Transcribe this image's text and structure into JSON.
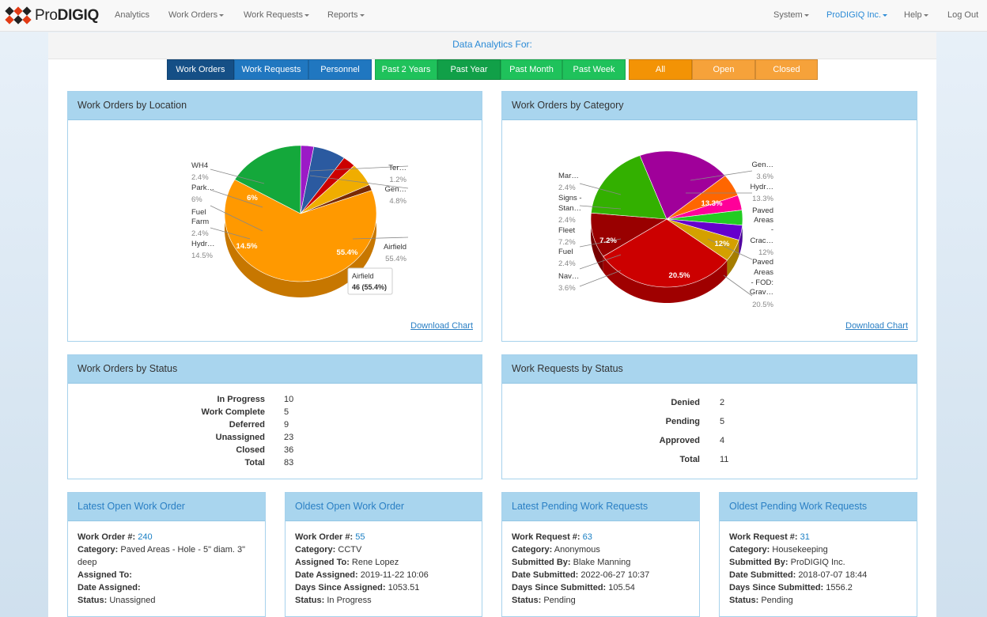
{
  "brand": {
    "name_prefix": "Pro",
    "name_suffix": "DIGIQ"
  },
  "nav": {
    "analytics": "Analytics",
    "work_orders": "Work Orders",
    "work_requests": "Work Requests",
    "reports": "Reports",
    "system": "System",
    "company": "ProDIGIQ Inc.",
    "help": "Help",
    "logout": "Log Out"
  },
  "page": {
    "heading": "Data Analytics For:"
  },
  "filters": {
    "type": [
      "Work Orders",
      "Work Requests",
      "Personnel"
    ],
    "type_selected": "Work Orders",
    "period": [
      "Past 2 Years",
      "Past Year",
      "Past Month",
      "Past Week"
    ],
    "period_selected": "Past Year",
    "state": [
      "All",
      "Open",
      "Closed"
    ],
    "state_selected": "All"
  },
  "charts": {
    "download_label": "Download Chart",
    "location": {
      "title": "Work Orders by Location",
      "tooltip": {
        "name": "Airfield",
        "value": "46 (55.4%)"
      }
    },
    "category": {
      "title": "Work Orders by Category"
    }
  },
  "chart_data": [
    {
      "type": "pie",
      "title": "Work Orders by Location",
      "slices": [
        {
          "label": "Airfield",
          "percent": 55.4,
          "value": 46,
          "color": "#ff9900"
        },
        {
          "label": "Hydr…",
          "percent": 14.5,
          "color": "#14a83b"
        },
        {
          "label": "Fuel Farm",
          "percent": 2.4,
          "color": "#9b1ac6"
        },
        {
          "label": "Park…",
          "percent": 6,
          "color": "#2b5aa0"
        },
        {
          "label": "WH4",
          "percent": 2.4,
          "color": "#cc0000"
        },
        {
          "label": "Gen…",
          "percent": 4.8,
          "color": "#f0ad00"
        },
        {
          "label": "Ter…",
          "percent": 1.2,
          "color": "#7a2a00"
        }
      ],
      "callouts": [
        {
          "label": "WH4",
          "pct": "2.4%"
        },
        {
          "label": "Park…",
          "pct": "6%"
        },
        {
          "label": "Fuel Farm",
          "pct": "2.4%"
        },
        {
          "label": "Hydr…",
          "pct": "14.5%"
        },
        {
          "label": "Ter…",
          "pct": "1.2%"
        },
        {
          "label": "Gen…",
          "pct": "4.8%"
        },
        {
          "label": "Airfield",
          "pct": "55.4%"
        }
      ],
      "inner_labels": [
        "55.4%",
        "14.5%",
        "6%"
      ]
    },
    {
      "type": "pie",
      "title": "Work Orders by Category",
      "slices": [
        {
          "label": "Paved Areas - FOD: Grav…",
          "percent": 20.5,
          "color": "#cc0000"
        },
        {
          "label": "Fleet",
          "percent": 7.2,
          "color": "#990000"
        },
        {
          "label": "Paved Areas - Crac…",
          "percent": 12,
          "color": "#33b000"
        },
        {
          "label": "Hydr…",
          "percent": 13.3,
          "color": "#a0009a"
        },
        {
          "label": "Gen…",
          "percent": 3.6,
          "color": "#ff6600"
        },
        {
          "label": "Mar…",
          "percent": 2.4,
          "color": "#ff0099"
        },
        {
          "label": "Signs - Stan…",
          "percent": 2.4,
          "color": "#22cc22"
        },
        {
          "label": "Fuel",
          "percent": 2.4,
          "color": "#6600cc"
        },
        {
          "label": "Nav…",
          "percent": 3.6,
          "color": "#d4a000"
        }
      ],
      "callouts": [
        {
          "label": "Mar…",
          "pct": "2.4%"
        },
        {
          "label": "Signs - Stan…",
          "pct": "2.4%"
        },
        {
          "label": "Fleet",
          "pct": "7.2%"
        },
        {
          "label": "Fuel",
          "pct": "2.4%"
        },
        {
          "label": "Nav…",
          "pct": "3.6%"
        },
        {
          "label": "Gen…",
          "pct": "3.6%"
        },
        {
          "label": "Hydr…",
          "pct": "13.3%"
        },
        {
          "label": "Paved Areas - Crac…",
          "pct": "12%"
        },
        {
          "label": "Paved Areas - FOD: Grav…",
          "pct": "20.5%"
        }
      ],
      "inner_labels": [
        "13.3%",
        "12%",
        "20.5%",
        "7.2%"
      ]
    }
  ],
  "wo_status": {
    "title": "Work Orders by Status",
    "rows": [
      {
        "label": "In Progress",
        "value": "10"
      },
      {
        "label": "Work Complete",
        "value": "5"
      },
      {
        "label": "Deferred",
        "value": "9"
      },
      {
        "label": "Unassigned",
        "value": "23"
      },
      {
        "label": "Closed",
        "value": "36"
      },
      {
        "label": "Total",
        "value": "83"
      }
    ]
  },
  "wr_status": {
    "title": "Work Requests by Status",
    "rows": [
      {
        "label": "Denied",
        "value": "2"
      },
      {
        "label": "Pending",
        "value": "5"
      },
      {
        "label": "Approved",
        "value": "4"
      },
      {
        "label": "Total",
        "value": "11"
      }
    ]
  },
  "latest_open_wo": {
    "title": "Latest Open Work Order",
    "number_label": "Work Order #:",
    "number": "240",
    "category_label": "Category:",
    "category": "Paved Areas - Hole - 5\" diam. 3\" deep",
    "assigned_to_label": "Assigned To:",
    "assigned_to": "",
    "date_assigned_label": "Date Assigned:",
    "date_assigned": "",
    "status_label": "Status:",
    "status": "Unassigned"
  },
  "oldest_open_wo": {
    "title": "Oldest Open Work Order",
    "number_label": "Work Order #:",
    "number": "55",
    "category_label": "Category:",
    "category": "CCTV",
    "assigned_to_label": "Assigned To:",
    "assigned_to": "Rene Lopez",
    "date_assigned_label": "Date Assigned:",
    "date_assigned": "2019-11-22 10:06",
    "days_label": "Days Since Assigned:",
    "days": "1053.51",
    "status_label": "Status:",
    "status": "In Progress"
  },
  "latest_pending_wr": {
    "title": "Latest Pending Work Requests",
    "number_label": "Work Request #:",
    "number": "63",
    "category_label": "Category:",
    "category": "Anonymous",
    "submitted_by_label": "Submitted By:",
    "submitted_by": "Blake Manning",
    "date_label": "Date Submitted:",
    "date": "2022-06-27 10:37",
    "days_label": "Days Since Submitted:",
    "days": "105.54",
    "status_label": "Status:",
    "status": "Pending"
  },
  "oldest_pending_wr": {
    "title": "Oldest Pending Work Requests",
    "number_label": "Work Request #:",
    "number": "31",
    "category_label": "Category:",
    "category": "Housekeeping",
    "submitted_by_label": "Submitted By:",
    "submitted_by": "ProDIGIQ Inc.",
    "date_label": "Date Submitted:",
    "date": "2018-07-07 18:44",
    "days_label": "Days Since Submitted:",
    "days": "1556.2",
    "status_label": "Status:",
    "status": "Pending"
  }
}
